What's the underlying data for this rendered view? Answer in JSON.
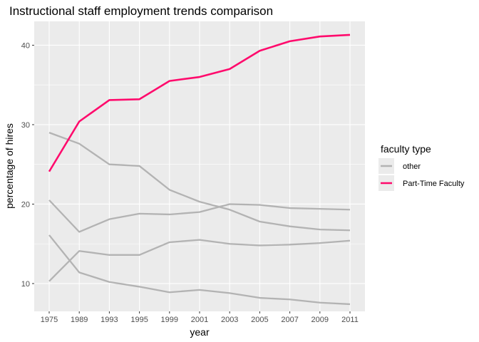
{
  "chart_data": {
    "type": "line",
    "title": "Instructional staff employment trends comparison",
    "xlabel": "year",
    "ylabel": "percentage of hires",
    "x": [
      "1975",
      "1989",
      "1993",
      "1995",
      "1999",
      "2001",
      "2003",
      "2005",
      "2007",
      "2009",
      "2011"
    ],
    "ylim": [
      6.5,
      43
    ],
    "y_ticks": [
      10,
      20,
      30,
      40
    ],
    "grid": true,
    "legend_position": "right",
    "legend": {
      "title": "faculty type",
      "items": [
        {
          "label": "other",
          "color": "#b3b3b3"
        },
        {
          "label": "Part-Time Faculty",
          "color": "#ff0a6c"
        }
      ]
    },
    "series": [
      {
        "group": "other",
        "color": "#b3b3b3",
        "values": [
          29.0,
          27.6,
          25.0,
          24.8,
          21.8,
          20.3,
          19.3,
          17.8,
          17.2,
          16.8,
          16.7
        ]
      },
      {
        "group": "other",
        "color": "#b3b3b3",
        "values": [
          20.5,
          16.5,
          18.1,
          18.8,
          18.7,
          19.0,
          20.0,
          19.9,
          19.5,
          19.4,
          19.3
        ]
      },
      {
        "group": "other",
        "color": "#b3b3b3",
        "values": [
          10.3,
          14.1,
          13.6,
          13.6,
          15.2,
          15.5,
          15.0,
          14.8,
          14.9,
          15.1,
          15.4
        ]
      },
      {
        "group": "other",
        "color": "#b3b3b3",
        "values": [
          16.1,
          11.4,
          10.2,
          9.6,
          8.9,
          9.2,
          8.8,
          8.2,
          8.0,
          7.6,
          7.4
        ]
      },
      {
        "group": "Part-Time Faculty",
        "color": "#ff0a6c",
        "values": [
          24.1,
          30.4,
          33.1,
          33.2,
          35.5,
          36.0,
          37.0,
          39.3,
          40.5,
          41.1,
          41.3
        ]
      }
    ]
  }
}
